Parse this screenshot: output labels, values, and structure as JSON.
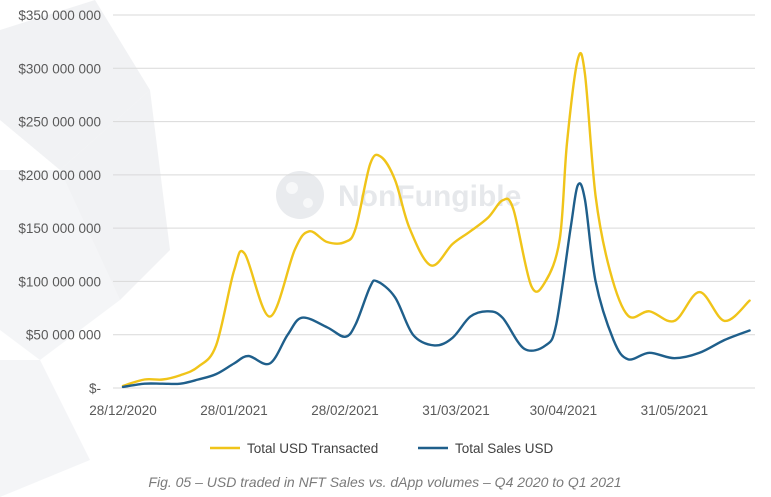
{
  "chart_data": {
    "type": "line",
    "title": "",
    "xlabel": "",
    "ylabel": "",
    "ylim": [
      0,
      350000000
    ],
    "y_ticks": [
      0,
      50000000,
      100000000,
      150000000,
      200000000,
      250000000,
      300000000,
      350000000
    ],
    "y_tick_labels": [
      "$-",
      "$50 000 000",
      "$100 000 000",
      "$150 000 000",
      "$200 000 000",
      "$250 000 000",
      "$300 000 000",
      "$350 000 000"
    ],
    "x_tick_dates": [
      "2020-12-28",
      "2021-01-28",
      "2021-02-28",
      "2021-03-31",
      "2021-04-30",
      "2021-05-31"
    ],
    "x_tick_labels": [
      "28/12/2020",
      "28/01/2021",
      "28/02/2021",
      "31/03/2021",
      "30/04/2021",
      "31/05/2021"
    ],
    "grid": "horizontal",
    "legend_position": "bottom",
    "series": [
      {
        "name": "Total USD Transacted",
        "color": "#f0c419",
        "points": [
          [
            "2020-12-28",
            2000000
          ],
          [
            "2021-01-03",
            8000000
          ],
          [
            "2021-01-08",
            8000000
          ],
          [
            "2021-01-13",
            12000000
          ],
          [
            "2021-01-18",
            20000000
          ],
          [
            "2021-01-23",
            40000000
          ],
          [
            "2021-01-28",
            110000000
          ],
          [
            "2021-01-31",
            126000000
          ],
          [
            "2021-02-07",
            67000000
          ],
          [
            "2021-02-14",
            130000000
          ],
          [
            "2021-02-18",
            147000000
          ],
          [
            "2021-02-23",
            137000000
          ],
          [
            "2021-02-28",
            137000000
          ],
          [
            "2021-03-03",
            150000000
          ],
          [
            "2021-03-07",
            210000000
          ],
          [
            "2021-03-10",
            217000000
          ],
          [
            "2021-03-14",
            195000000
          ],
          [
            "2021-03-18",
            150000000
          ],
          [
            "2021-03-24",
            115000000
          ],
          [
            "2021-03-30",
            135000000
          ],
          [
            "2021-04-04",
            147000000
          ],
          [
            "2021-04-09",
            160000000
          ],
          [
            "2021-04-13",
            176000000
          ],
          [
            "2021-04-16",
            168000000
          ],
          [
            "2021-04-21",
            96000000
          ],
          [
            "2021-04-25",
            100000000
          ],
          [
            "2021-04-29",
            140000000
          ],
          [
            "2021-05-01",
            230000000
          ],
          [
            "2021-05-04",
            308000000
          ],
          [
            "2021-05-06",
            295000000
          ],
          [
            "2021-05-09",
            180000000
          ],
          [
            "2021-05-13",
            110000000
          ],
          [
            "2021-05-18",
            68000000
          ],
          [
            "2021-05-24",
            72000000
          ],
          [
            "2021-05-31",
            63000000
          ],
          [
            "2021-06-07",
            90000000
          ],
          [
            "2021-06-14",
            63000000
          ],
          [
            "2021-06-21",
            82000000
          ]
        ]
      },
      {
        "name": "Total Sales USD",
        "color": "#1f5f8b",
        "points": [
          [
            "2020-12-28",
            1000000
          ],
          [
            "2021-01-03",
            4000000
          ],
          [
            "2021-01-08",
            4000000
          ],
          [
            "2021-01-13",
            4000000
          ],
          [
            "2021-01-18",
            8000000
          ],
          [
            "2021-01-23",
            13000000
          ],
          [
            "2021-01-28",
            23000000
          ],
          [
            "2021-02-01",
            30000000
          ],
          [
            "2021-02-07",
            23000000
          ],
          [
            "2021-02-12",
            50000000
          ],
          [
            "2021-02-16",
            66000000
          ],
          [
            "2021-02-23",
            57000000
          ],
          [
            "2021-02-28",
            48000000
          ],
          [
            "2021-03-03",
            60000000
          ],
          [
            "2021-03-07",
            95000000
          ],
          [
            "2021-03-09",
            100000000
          ],
          [
            "2021-03-14",
            85000000
          ],
          [
            "2021-03-19",
            50000000
          ],
          [
            "2021-03-25",
            40000000
          ],
          [
            "2021-03-30",
            47000000
          ],
          [
            "2021-04-04",
            67000000
          ],
          [
            "2021-04-09",
            72000000
          ],
          [
            "2021-04-13",
            66000000
          ],
          [
            "2021-04-19",
            37000000
          ],
          [
            "2021-04-25",
            40000000
          ],
          [
            "2021-04-28",
            60000000
          ],
          [
            "2021-05-02",
            150000000
          ],
          [
            "2021-05-04",
            190000000
          ],
          [
            "2021-05-06",
            177000000
          ],
          [
            "2021-05-09",
            100000000
          ],
          [
            "2021-05-14",
            45000000
          ],
          [
            "2021-05-18",
            27000000
          ],
          [
            "2021-05-24",
            33000000
          ],
          [
            "2021-05-31",
            28000000
          ],
          [
            "2021-06-07",
            33000000
          ],
          [
            "2021-06-14",
            45000000
          ],
          [
            "2021-06-21",
            54000000
          ]
        ]
      }
    ]
  },
  "watermark": {
    "text": "NonFungible"
  },
  "caption": "Fig. 05 – USD traded in NFT Sales vs. dApp volumes – Q4 2020 to Q1 2021"
}
